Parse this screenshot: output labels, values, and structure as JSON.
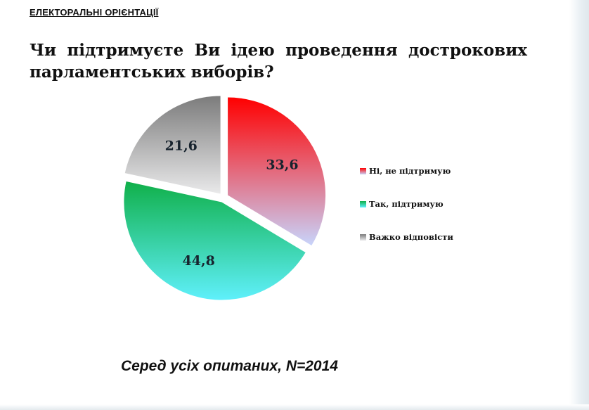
{
  "header": {
    "section_title": "ЕЛЕКТОРАЛЬНІ ОРІЄНТАЦІЇ",
    "question": "Чи підтримуєте Ви ідею проведення дострокових парламентських виборів?"
  },
  "footer": {
    "sample_note": "Серед усіх опитаних, N=2014"
  },
  "colors": {
    "no_support": [
      "#ff0000",
      "#c8d4fb"
    ],
    "support": [
      "#10b04a",
      "#5ff0fb"
    ],
    "hard_to_say": [
      "#7c7c7c",
      "#e9e9ea"
    ]
  },
  "chart_data": {
    "type": "pie",
    "title": "Чи підтримуєте Ви ідею проведення дострокових парламентських виборів?",
    "slices": [
      {
        "label": "Ні, не підтримую",
        "value": 33.6,
        "value_label": "33,6",
        "color_key": "no_support"
      },
      {
        "label": "Так, підтримую",
        "value": 44.8,
        "value_label": "44,8",
        "color_key": "support"
      },
      {
        "label": "Важко відповісти",
        "value": 21.6,
        "value_label": "21,6",
        "color_key": "hard_to_say"
      }
    ],
    "legend_position": "right",
    "exploded": true,
    "start": "12 o'clock",
    "direction": "clockwise"
  }
}
